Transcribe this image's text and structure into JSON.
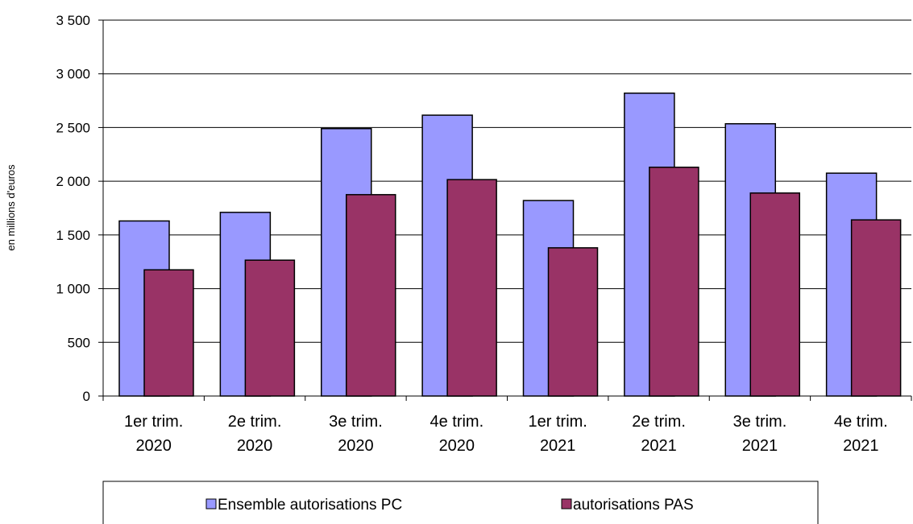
{
  "chart_data": {
    "type": "bar",
    "y_label": "en millions d'euros",
    "categories": [
      "1er trim. 2020",
      "2e trim. 2020",
      "3e trim. 2020",
      "4e trim. 2020",
      "1er trim. 2021",
      "2e trim. 2021",
      "3e trim. 2021",
      "4e trim. 2021"
    ],
    "series": [
      {
        "name": "Ensemble autorisations PC",
        "color": "#9999ff",
        "values": [
          1630,
          1710,
          2490,
          2615,
          1820,
          2820,
          2535,
          2075
        ]
      },
      {
        "name": "autorisations PAS",
        "color": "#993366",
        "values": [
          1175,
          1265,
          1875,
          2015,
          1380,
          2130,
          1890,
          1640
        ]
      }
    ],
    "ylim": [
      0,
      3500
    ],
    "yticks": [
      0,
      {
        "value": 500,
        "label": "500"
      },
      {
        "value": 1000,
        "label": "1 000"
      },
      {
        "value": 1500,
        "label": "1 500"
      },
      {
        "value": 2000,
        "label": "2 000"
      },
      {
        "value": 2500,
        "label": "2 500"
      },
      {
        "value": 3000,
        "label": "3 000"
      },
      {
        "value": 3500,
        "label": "3 500"
      }
    ],
    "grid": true,
    "legend": "bottom"
  }
}
